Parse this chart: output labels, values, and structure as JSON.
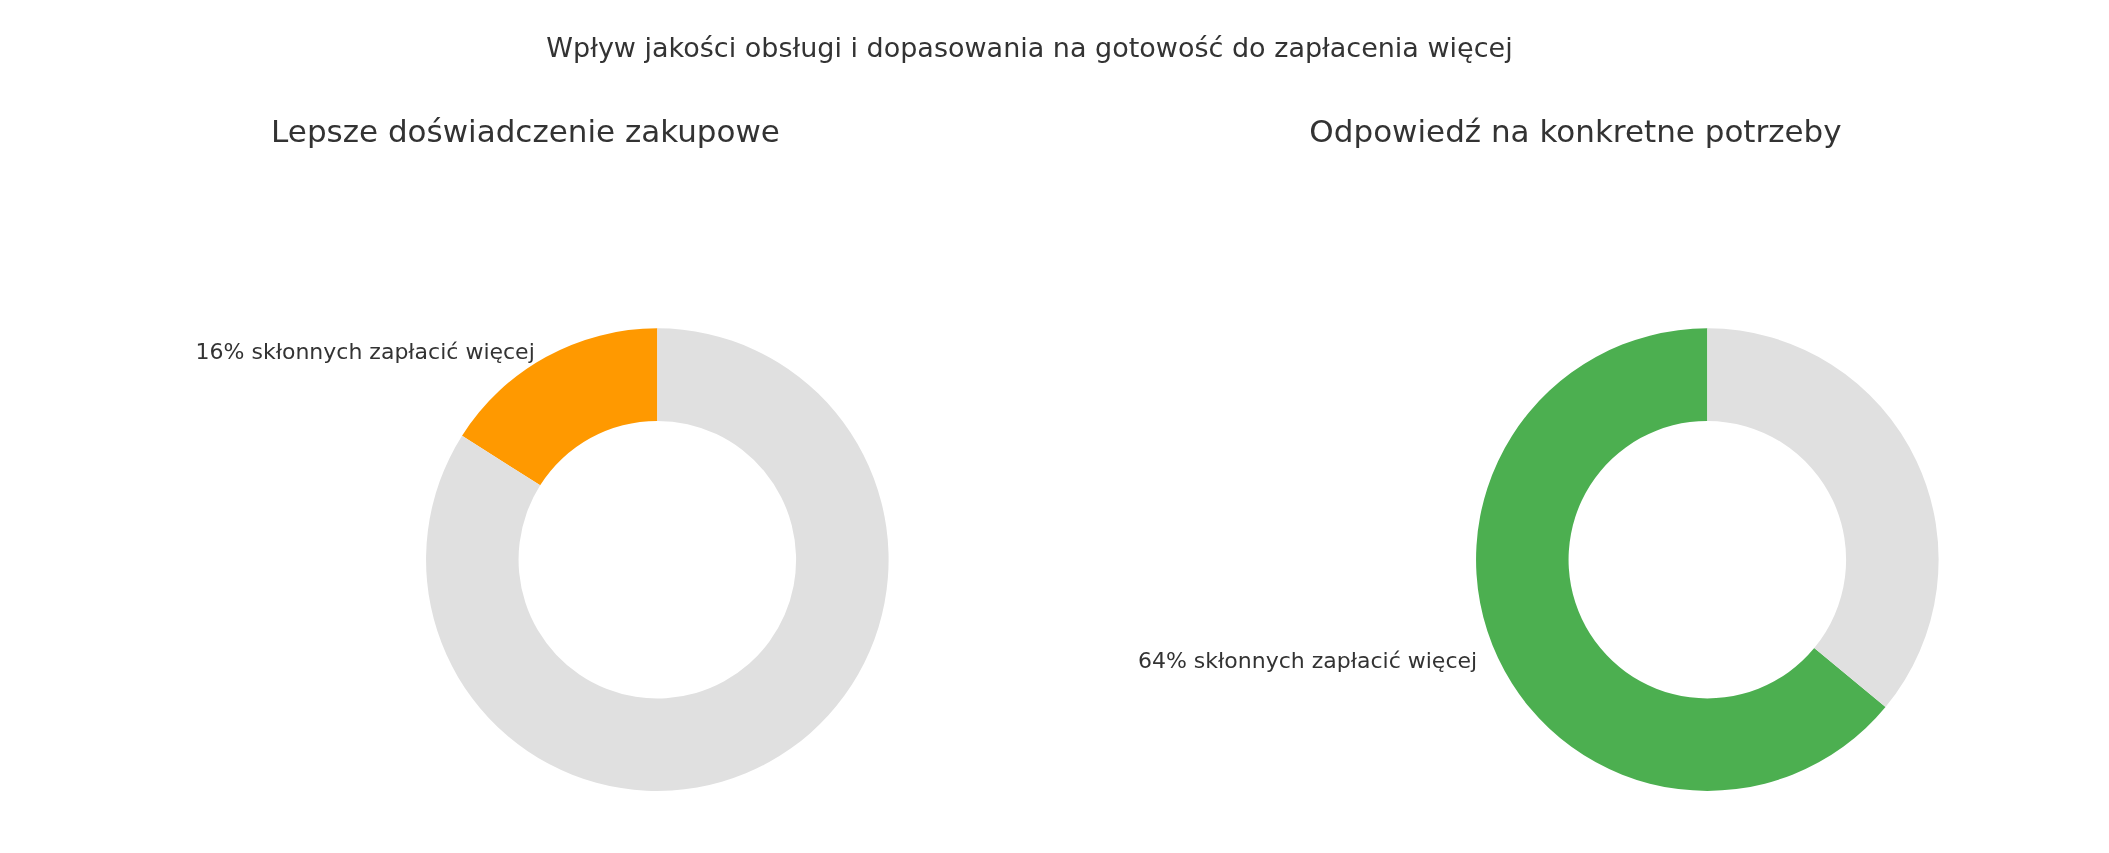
{
  "chart_data": [
    {
      "type": "other",
      "title": "Wpływ jakości obsługi i dopasowania na gotowość do zapłacenia więcej"
    },
    {
      "type": "donut",
      "title": "Lepsze doświadczenie zakupowe",
      "categories": [
        "16% skłonnych zapłacić więcej",
        null
      ],
      "values": [
        16,
        84
      ],
      "colors": [
        "#ff9900",
        "#e0e0e0"
      ]
    },
    {
      "type": "donut",
      "title": "Odpowiedź na konkretne potrzeby",
      "categories": [
        "64% skłonnych zapłacić więcej",
        null
      ],
      "values": [
        64,
        36
      ],
      "colors": [
        "#4caf50",
        "#e0e0e0"
      ]
    }
  ]
}
